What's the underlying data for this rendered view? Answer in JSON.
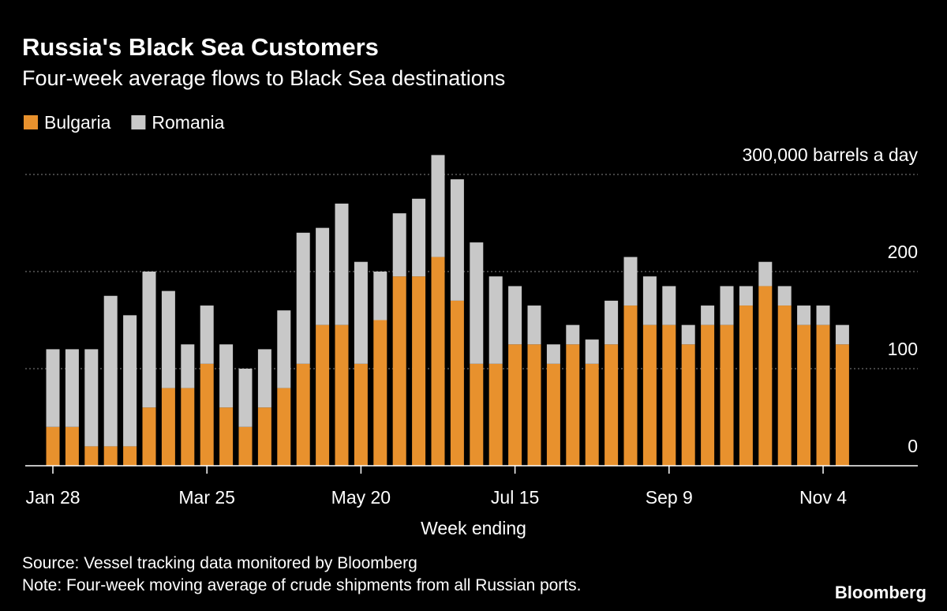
{
  "chart_data": {
    "type": "stacked_bar",
    "title": "Russia's Black Sea Customers",
    "subtitle": "Four-week average flows to Black Sea destinations",
    "x_label": "Week ending",
    "source": "Source: Vessel tracking data monitored by Bloomberg",
    "note": "Note: Four-week moving average of crude shipments from all Russian ports.",
    "brand": "Bloomberg",
    "categories": [
      "Jan 28",
      null,
      null,
      null,
      null,
      null,
      null,
      null,
      "Mar 25",
      null,
      null,
      null,
      null,
      null,
      null,
      null,
      "May 20",
      null,
      null,
      null,
      null,
      null,
      null,
      null,
      "Jul 15",
      null,
      null,
      null,
      null,
      null,
      null,
      null,
      "Sep 9",
      null,
      null,
      null,
      null,
      null,
      null,
      null,
      "Nov 4",
      null
    ],
    "series": [
      {
        "name": "Bulgaria",
        "color": "#e8912d",
        "values": [
          40,
          40,
          20,
          20,
          20,
          60,
          80,
          80,
          105,
          60,
          40,
          60,
          80,
          105,
          145,
          145,
          105,
          150,
          195,
          195,
          215,
          170,
          105,
          105,
          125,
          125,
          105,
          125,
          105,
          125,
          165,
          145,
          145,
          125,
          145,
          145,
          165,
          185,
          165,
          145,
          145,
          125
        ]
      },
      {
        "name": "Romania",
        "color": "#c8c8c8",
        "values": [
          80,
          80,
          100,
          155,
          135,
          140,
          100,
          45,
          60,
          65,
          60,
          60,
          80,
          135,
          100,
          125,
          105,
          50,
          65,
          80,
          105,
          125,
          125,
          90,
          60,
          40,
          20,
          20,
          25,
          45,
          50,
          50,
          40,
          20,
          20,
          40,
          20,
          25,
          20,
          20,
          20,
          20
        ]
      }
    ],
    "ylim": [
      0,
      320
    ],
    "yticks": [
      0,
      100,
      200,
      {
        "value": 300,
        "label": "300,000 barrels a day"
      }
    ],
    "grid": true
  }
}
